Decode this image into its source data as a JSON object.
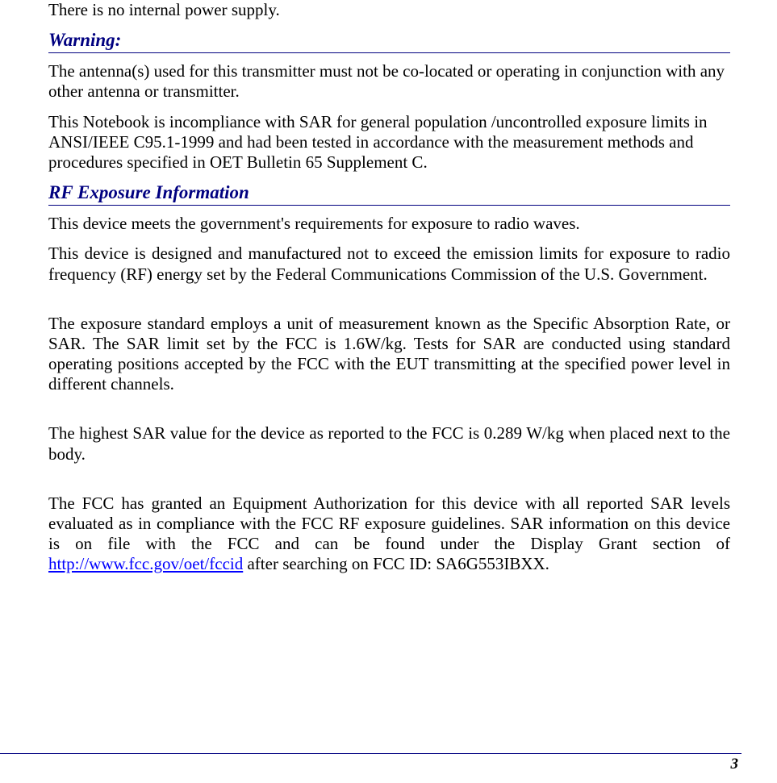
{
  "colors": {
    "heading_color": "#000080",
    "link_color": "#0000ff",
    "text_color": "#000000",
    "background": "#ffffff"
  },
  "typography": {
    "body_font": "Times New Roman",
    "body_size_pt": 16,
    "heading_size_pt": 17,
    "heading_style": "bold italic",
    "page_num_style": "bold italic"
  },
  "intro_para": "There is no internal power supply.",
  "warning_heading": "Warning:",
  "warning_para1": "The antenna(s) used for this transmitter must not be co-located or operating in conjunction with any other antenna or transmitter.",
  "warning_para2": "This Notebook is incompliance with SAR for general population /uncontrolled exposure limits in ANSI/IEEE C95.1-1999 and had been tested in accordance with the measurement methods and procedures specified in OET Bulletin 65 Supplement C.",
  "rf_heading": "RF Exposure Information",
  "rf_para1": "This device meets the government's requirements for exposure to radio waves.",
  "rf_para2": "This device is designed and manufactured not to exceed the emission limits for exposure to radio frequency (RF) energy set by the Federal Communications Commission of the U.S. Government.",
  "rf_para3": "The exposure standard employs a unit of measurement known as the Specific Absorption Rate, or SAR.  The SAR limit set by the FCC is 1.6W/kg.  Tests for SAR are conducted using standard operating positions accepted by the FCC with the EUT transmitting at the specified power level in different channels.",
  "rf_para4": "The highest SAR value for the device as reported to the FCC is 0.289 W/kg when placed next to the body.",
  "rf_para5_pre": "The FCC has granted an Equipment Authorization for this device with all reported SAR levels evaluated as in compliance with the FCC RF exposure guidelines.  SAR information on this device is on file with the FCC and can be found under the Display Grant section of ",
  "rf_link_text": "http://www.fcc.gov/oet/fccid",
  "rf_para5_post": " after searching on FCC ID: SA6G553IBXX.",
  "page_number": "3"
}
